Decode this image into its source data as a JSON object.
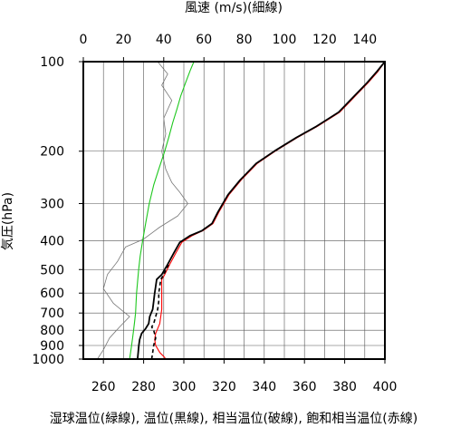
{
  "chart_data": {
    "type": "line",
    "title": "風速 (m/s)(細線)",
    "xlabel": "湿球温位(緑線), 温位(黒線), 相当温位(破線), 飽和相当温位(赤線)",
    "ylabel": "気圧(hPa)",
    "x_bottom": {
      "unit": "K",
      "range": [
        250,
        400
      ],
      "ticks": [
        260,
        280,
        300,
        320,
        340,
        360,
        380,
        400
      ]
    },
    "x_top": {
      "unit": "m/s",
      "range": [
        0,
        150
      ],
      "ticks": [
        0,
        20,
        40,
        60,
        80,
        100,
        120,
        140
      ]
    },
    "y": {
      "unit": "hPa",
      "scale": "log",
      "range": [
        1000,
        100
      ],
      "ticks": [
        100,
        200,
        300,
        400,
        500,
        600,
        700,
        800,
        900,
        1000
      ]
    },
    "grid": true,
    "colors": {
      "wet_bulb": "#1ec81e",
      "theta": "#000000",
      "theta_e": "#000000",
      "theta_es": "#ff0000",
      "wind": "#777777",
      "grid": "#555555"
    },
    "series": [
      {
        "name": "湿球温位(緑線)",
        "axis": "bottom",
        "points": [
          [
            273,
            1000
          ],
          [
            273.5,
            950
          ],
          [
            274,
            900
          ],
          [
            274.5,
            850
          ],
          [
            275,
            800
          ],
          [
            275.5,
            750
          ],
          [
            276,
            700
          ],
          [
            276.2,
            650
          ],
          [
            276.5,
            600
          ],
          [
            277,
            550
          ],
          [
            277.5,
            500
          ],
          [
            278.3,
            450
          ],
          [
            279.5,
            400
          ],
          [
            281,
            350
          ],
          [
            282.8,
            300
          ],
          [
            285,
            260
          ],
          [
            287.5,
            230
          ],
          [
            290.5,
            200
          ],
          [
            292.5,
            180
          ],
          [
            294.5,
            160
          ],
          [
            296.5,
            145
          ],
          [
            298.5,
            130
          ],
          [
            301,
            117
          ],
          [
            303.2,
            107
          ],
          [
            305,
            100
          ]
        ]
      },
      {
        "name": "温位(黒線)",
        "axis": "bottom",
        "points": [
          [
            277,
            1000
          ],
          [
            277.3,
            950
          ],
          [
            277.6,
            900
          ],
          [
            278,
            860
          ],
          [
            279,
            820
          ],
          [
            281,
            790
          ],
          [
            282.5,
            760
          ],
          [
            283,
            720
          ],
          [
            284.5,
            680
          ],
          [
            285,
            640
          ],
          [
            285.5,
            600
          ],
          [
            286,
            570
          ],
          [
            286.5,
            540
          ],
          [
            289,
            520
          ],
          [
            292,
            480
          ],
          [
            295,
            440
          ],
          [
            298,
            405
          ],
          [
            303,
            385
          ],
          [
            309,
            370
          ],
          [
            314,
            350
          ],
          [
            317,
            320
          ],
          [
            322,
            280
          ],
          [
            328,
            250
          ],
          [
            336,
            220
          ],
          [
            345,
            200
          ],
          [
            356,
            180
          ],
          [
            366,
            165
          ],
          [
            377,
            148
          ],
          [
            385,
            130
          ],
          [
            391,
            118
          ],
          [
            396,
            108
          ],
          [
            400,
            100
          ]
        ]
      },
      {
        "name": "相当温位(破線)",
        "axis": "bottom",
        "points": [
          [
            284,
            1000
          ],
          [
            284.5,
            950
          ],
          [
            285,
            900
          ],
          [
            286,
            850
          ],
          [
            285,
            800
          ],
          [
            284,
            780
          ],
          [
            285,
            760
          ],
          [
            286,
            720
          ],
          [
            287,
            680
          ],
          [
            287.5,
            640
          ],
          [
            287.5,
            600
          ],
          [
            288,
            570
          ],
          [
            288.5,
            540
          ],
          [
            290,
            520
          ],
          [
            292.5,
            480
          ]
        ]
      },
      {
        "name": "飽和相当温位(赤線)",
        "axis": "bottom",
        "points": [
          [
            291,
            1000
          ],
          [
            290,
            980
          ],
          [
            288,
            950
          ],
          [
            286,
            900
          ],
          [
            285.5,
            860
          ],
          [
            286,
            820
          ],
          [
            287,
            790
          ],
          [
            288,
            760
          ],
          [
            288.5,
            720
          ],
          [
            289,
            680
          ],
          [
            289,
            640
          ],
          [
            289,
            600
          ],
          [
            289,
            570
          ],
          [
            289,
            540
          ],
          [
            290.5,
            520
          ],
          [
            293,
            480
          ],
          [
            296,
            440
          ],
          [
            299,
            405
          ],
          [
            304,
            385
          ],
          [
            309.5,
            370
          ],
          [
            314.5,
            350
          ],
          [
            317.5,
            320
          ],
          [
            322.5,
            280
          ],
          [
            328.5,
            250
          ],
          [
            336.5,
            220
          ],
          [
            345.5,
            200
          ],
          [
            356.5,
            180
          ],
          [
            366.5,
            165
          ],
          [
            377.5,
            148
          ],
          [
            385.5,
            130
          ],
          [
            391.5,
            118
          ],
          [
            396.5,
            108
          ],
          [
            400,
            100
          ]
        ]
      },
      {
        "name": "風速(細線)",
        "axis": "top",
        "points": [
          [
            7,
            1000
          ],
          [
            10,
            930
          ],
          [
            13,
            850
          ],
          [
            18,
            780
          ],
          [
            23,
            720
          ],
          [
            15,
            650
          ],
          [
            10,
            580
          ],
          [
            12,
            520
          ],
          [
            17,
            470
          ],
          [
            21,
            420
          ],
          [
            30,
            395
          ],
          [
            38,
            360
          ],
          [
            47,
            330
          ],
          [
            52,
            300
          ],
          [
            48,
            275
          ],
          [
            44,
            255
          ],
          [
            41,
            230
          ],
          [
            39,
            200
          ],
          [
            41,
            175
          ],
          [
            40,
            155
          ],
          [
            44,
            135
          ],
          [
            39,
            120
          ],
          [
            42,
            110
          ],
          [
            37,
            100
          ]
        ]
      }
    ]
  }
}
